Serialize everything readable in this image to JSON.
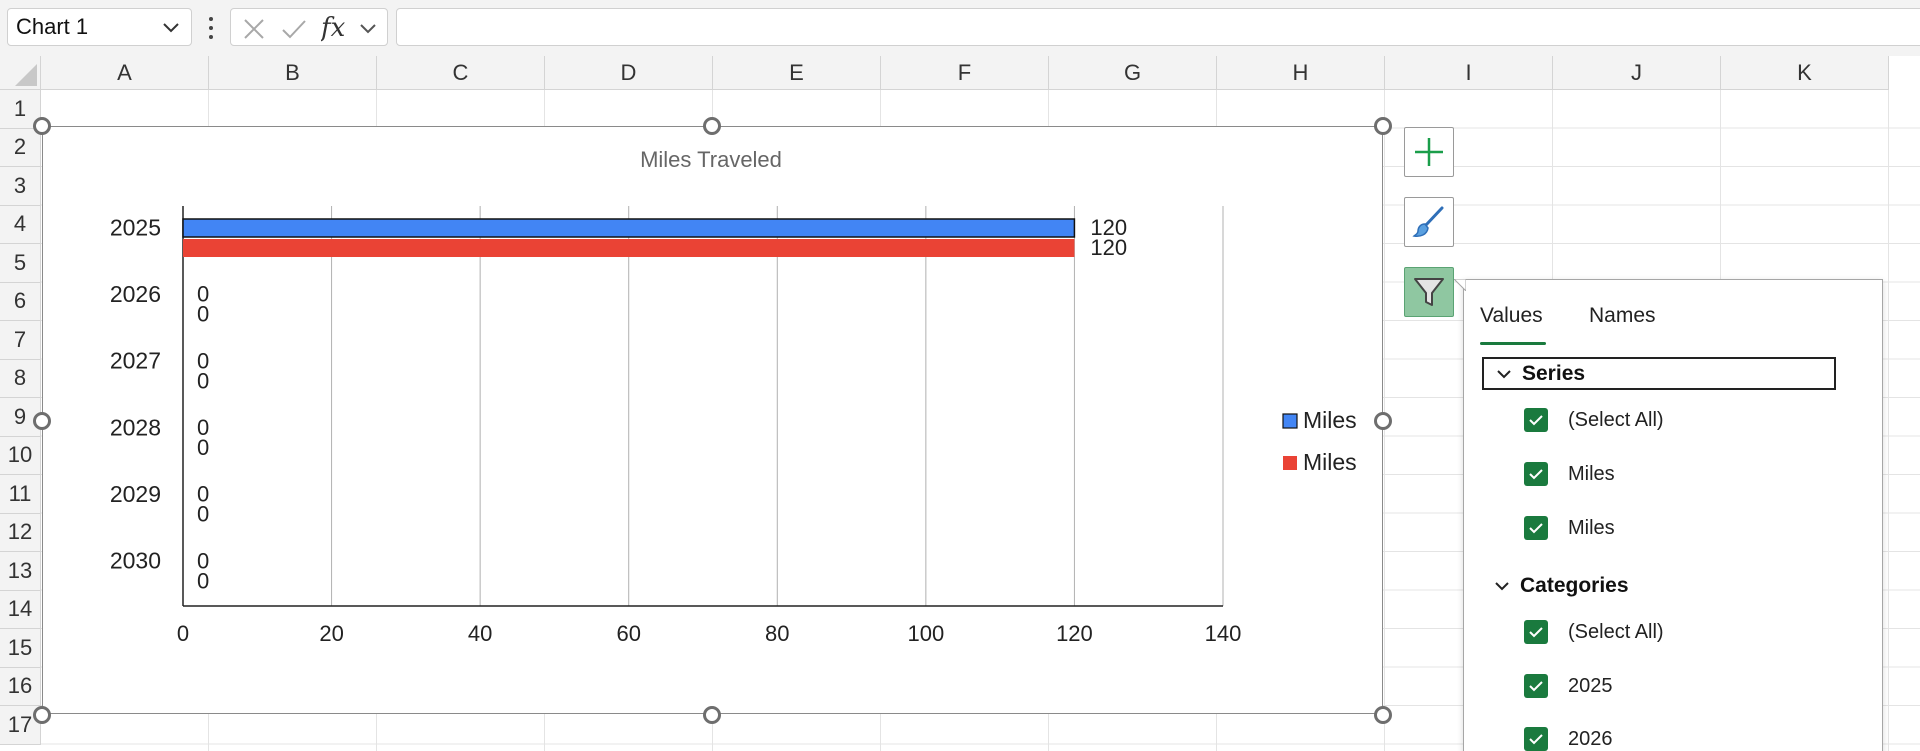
{
  "formula_bar": {
    "name_box_value": "Chart 1",
    "formula_value": ""
  },
  "grid": {
    "columns": [
      "A",
      "B",
      "C",
      "D",
      "E",
      "F",
      "G",
      "H",
      "I",
      "J",
      "K"
    ],
    "rows": [
      "1",
      "2",
      "3",
      "4",
      "5",
      "6",
      "7",
      "8",
      "9",
      "10",
      "11",
      "12",
      "13",
      "14",
      "15",
      "16",
      "17"
    ]
  },
  "chart_data": {
    "type": "bar",
    "orientation": "horizontal",
    "title": "Miles Traveled",
    "categories": [
      "2025",
      "2026",
      "2027",
      "2028",
      "2029",
      "2030"
    ],
    "series": [
      {
        "name": "Miles",
        "color": "#4285f4",
        "values": [
          120,
          0,
          0,
          0,
          0,
          0
        ]
      },
      {
        "name": "Miles",
        "color": "#ea4335",
        "values": [
          120,
          0,
          0,
          0,
          0,
          0
        ]
      }
    ],
    "xlim": [
      0,
      140
    ],
    "x_ticks": [
      "0",
      "20",
      "40",
      "60",
      "80",
      "100",
      "120",
      "140"
    ],
    "gridlines": true,
    "legend_position": "right",
    "data_labels": true
  },
  "filter_panel": {
    "tabs": [
      "Values",
      "Names"
    ],
    "active_tab": "Values",
    "sections": [
      {
        "title": "Series",
        "items": [
          "(Select All)",
          "Miles",
          "Miles"
        ]
      },
      {
        "title": "Categories",
        "items": [
          "(Select All)",
          "2025",
          "2026"
        ]
      }
    ]
  },
  "colors": {
    "accent": "#1a7a3e",
    "series1": "#4285f4",
    "series2": "#ea4335"
  }
}
